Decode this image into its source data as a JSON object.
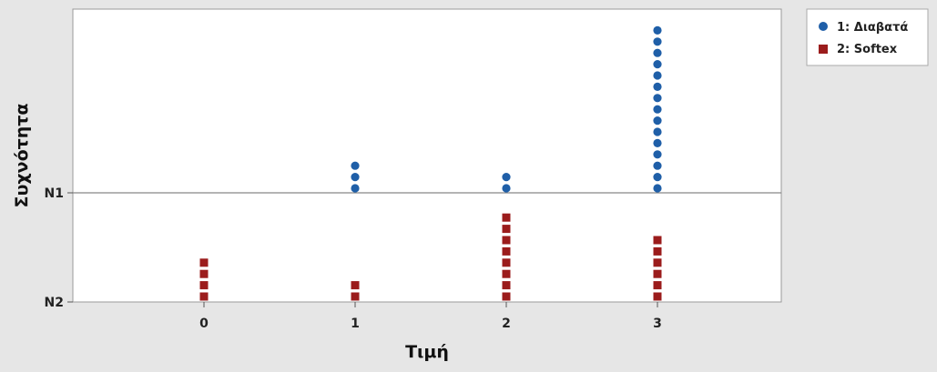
{
  "chart_data": {
    "type": "scatter",
    "subtype": "stacked-dotplot",
    "xlabel": "Τιμή",
    "ylabel": "Συχνότητα",
    "x_ticks": [
      0,
      1,
      2,
      3
    ],
    "y_ticks": [
      "N1",
      "N2"
    ],
    "grid": false,
    "legend_position": "top-right",
    "series": [
      {
        "name": "1: Διαβατά",
        "marker": "circle",
        "color": "#1f5fa8",
        "counts": {
          "0": 0,
          "1": 3,
          "2": 2,
          "3": 15
        }
      },
      {
        "name": "2: Softex",
        "marker": "square",
        "color": "#9b1c1c",
        "counts": {
          "0": 4,
          "1": 2,
          "2": 8,
          "3": 6
        }
      }
    ]
  }
}
